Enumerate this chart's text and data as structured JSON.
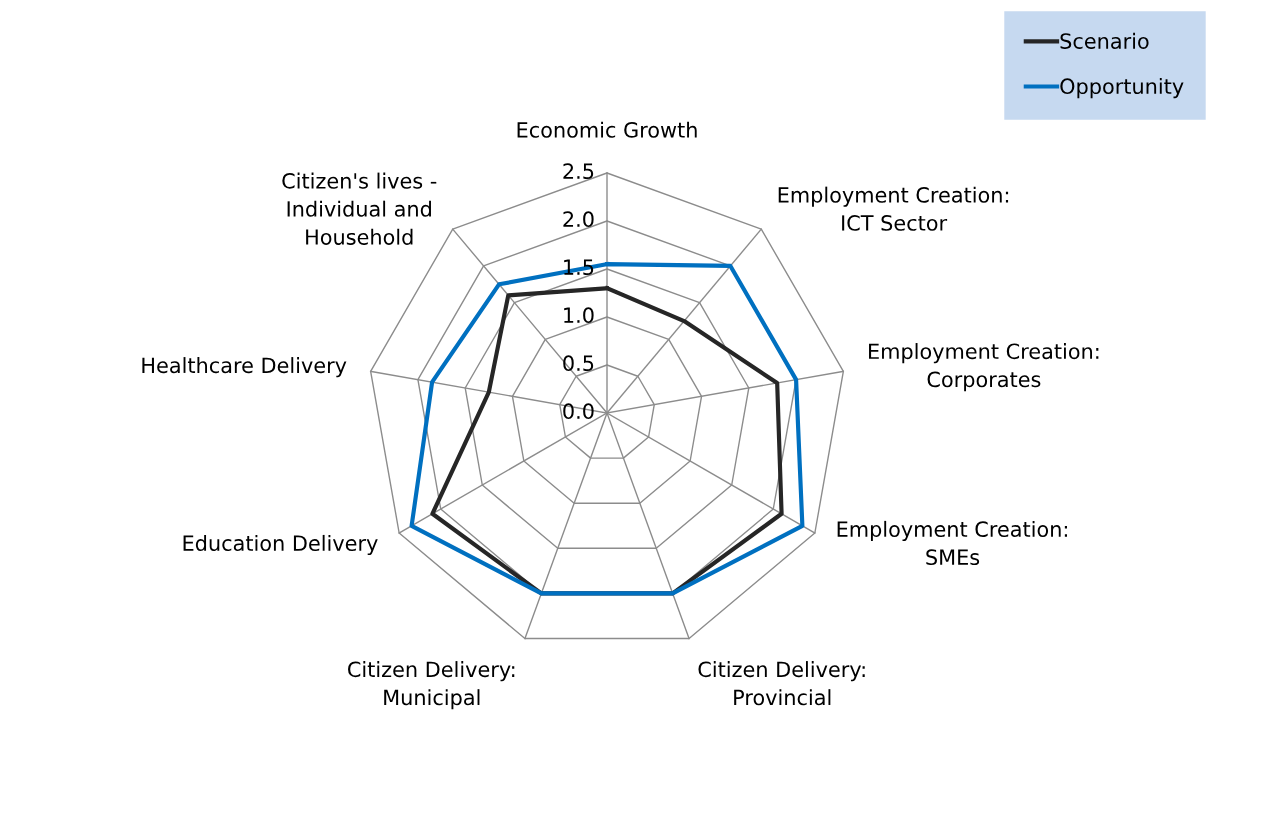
{
  "chart_data": {
    "type": "radar",
    "categories": [
      "Economic Growth",
      "Employment Creation:\nICT Sector",
      "Employment Creation:\nCorporates",
      "Employment Creation:\nSMEs",
      "Citizen Delivery:\nProvincial",
      "Citizen Delivery:\nMunicipal",
      "Education Delivery",
      "Healthcare Delivery",
      "Citizen's lives -\nIndividual and\nHousehold"
    ],
    "series": [
      {
        "name": "Scenario",
        "color": "#262626",
        "values": [
          1.3,
          1.25,
          1.8,
          2.1,
          2.0,
          2.0,
          2.1,
          1.25,
          1.6
        ]
      },
      {
        "name": "Opportunity",
        "color": "#0070c0",
        "values": [
          1.55,
          2.0,
          2.0,
          2.35,
          2.0,
          2.0,
          2.35,
          1.85,
          1.75
        ]
      }
    ],
    "ylim": [
      0,
      2.5
    ],
    "yticks": [
      {
        "value": 0,
        "label": "0.0"
      },
      {
        "value": 0.5,
        "label": "0.5"
      },
      {
        "value": 1,
        "label": "1.0"
      },
      {
        "value": 1.5,
        "label": "1.5"
      },
      {
        "value": 2,
        "label": "2.0"
      },
      {
        "value": 2.5,
        "label": "2.5"
      }
    ],
    "grid": true,
    "legend": "top right",
    "marker": "none",
    "line_style": "solid"
  }
}
